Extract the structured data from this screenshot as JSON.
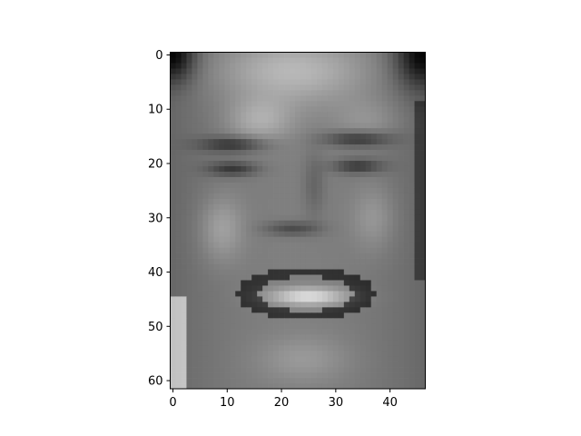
{
  "chart_data": {
    "type": "heatmap",
    "title": "",
    "xlabel": "",
    "ylabel": "",
    "colormap": "gray",
    "image_shape": [
      62,
      47
    ],
    "xlim": [
      -0.5,
      46.5
    ],
    "ylim": [
      61.5,
      -0.5
    ],
    "x_ticks": [
      0,
      10,
      20,
      30,
      40
    ],
    "y_ticks": [
      0,
      10,
      20,
      30,
      40,
      50,
      60
    ],
    "x_tick_labels": [
      "0",
      "10",
      "20",
      "30",
      "40"
    ],
    "y_tick_labels": [
      "0",
      "10",
      "20",
      "30",
      "40",
      "50",
      "60"
    ]
  },
  "colors": {
    "background": "#ffffff",
    "axis": "#000000"
  }
}
